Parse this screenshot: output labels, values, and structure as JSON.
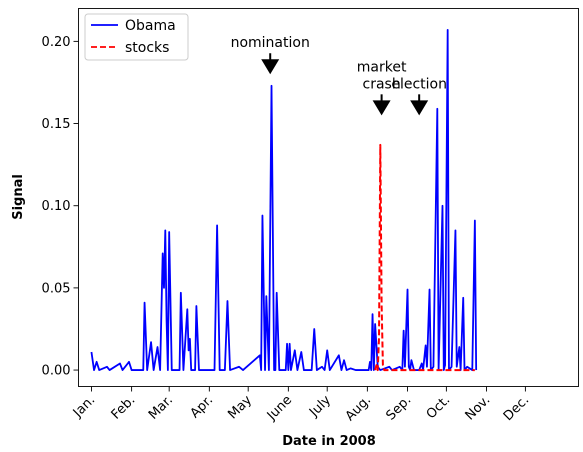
{
  "chart_data": {
    "type": "line",
    "title": "",
    "xlabel": "Date in 2008",
    "ylabel": "Signal",
    "x_tick_labels": [
      "Jan.",
      "Feb.",
      "Mar.",
      "Apr.",
      "May",
      "June",
      "July",
      "Aug.",
      "Sep.",
      "Oct.",
      "Nov.",
      "Dec."
    ],
    "y_tick_labels": [
      "0.00",
      "0.05",
      "0.10",
      "0.15",
      "0.20"
    ],
    "y_ticks": [
      0.0,
      0.05,
      0.1,
      0.15,
      0.2
    ],
    "xlim": [
      -10,
      376
    ],
    "ylim": [
      -0.01,
      0.22
    ],
    "grid": false,
    "legend_placement": "top-left",
    "colors": {
      "obama": "#0000ff",
      "stocks": "#ff0000"
    },
    "series": [
      {
        "name": "Obama",
        "style": "solid",
        "points": [
          [
            0,
            0.011
          ],
          [
            2,
            0.0
          ],
          [
            4,
            0.005
          ],
          [
            6,
            0.0
          ],
          [
            12,
            0.002
          ],
          [
            14,
            0.0
          ],
          [
            22,
            0.004
          ],
          [
            24,
            0.0
          ],
          [
            29,
            0.005
          ],
          [
            31,
            0.0
          ],
          [
            40,
            0.0
          ],
          [
            41,
            0.041
          ],
          [
            43,
            0.0
          ],
          [
            46,
            0.017
          ],
          [
            48,
            0.0
          ],
          [
            51,
            0.014
          ],
          [
            53,
            0.0
          ],
          [
            55,
            0.071
          ],
          [
            56,
            0.05
          ],
          [
            57,
            0.085
          ],
          [
            58,
            0.03
          ],
          [
            59,
            0.0
          ],
          [
            60,
            0.084
          ],
          [
            62,
            0.0
          ],
          [
            68,
            0.0
          ],
          [
            69,
            0.047
          ],
          [
            71,
            0.0
          ],
          [
            74,
            0.037
          ],
          [
            75,
            0.012
          ],
          [
            76,
            0.019
          ],
          [
            77,
            0.0
          ],
          [
            80,
            0.0
          ],
          [
            81,
            0.039
          ],
          [
            83,
            0.0
          ],
          [
            95,
            0.0
          ],
          [
            97,
            0.088
          ],
          [
            99,
            0.0
          ],
          [
            103,
            0.0
          ],
          [
            105,
            0.042
          ],
          [
            107,
            0.0
          ],
          [
            114,
            0.002
          ],
          [
            117,
            0.0
          ],
          [
            130,
            0.009
          ],
          [
            131,
            0.0
          ],
          [
            132,
            0.094
          ],
          [
            134,
            0.0
          ],
          [
            135,
            0.045
          ],
          [
            137,
            0.0
          ],
          [
            139,
            0.173
          ],
          [
            141,
            0.0
          ],
          [
            142,
            0.0
          ],
          [
            143,
            0.047
          ],
          [
            145,
            0.0
          ],
          [
            150,
            0.0
          ],
          [
            151,
            0.016
          ],
          [
            152,
            0.0
          ],
          [
            153,
            0.016
          ],
          [
            154,
            0.0
          ],
          [
            157,
            0.012
          ],
          [
            159,
            0.0
          ],
          [
            162,
            0.011
          ],
          [
            164,
            0.0
          ],
          [
            170,
            0.0
          ],
          [
            172,
            0.025
          ],
          [
            174,
            0.0
          ],
          [
            178,
            0.002
          ],
          [
            180,
            0.0
          ],
          [
            182,
            0.012
          ],
          [
            184,
            0.0
          ],
          [
            191,
            0.009
          ],
          [
            193,
            0.0
          ],
          [
            195,
            0.006
          ],
          [
            197,
            0.0
          ],
          [
            200,
            0.001
          ],
          [
            204,
            0.0
          ],
          [
            214,
            0.0
          ],
          [
            215,
            0.005
          ],
          [
            216,
            0.0
          ],
          [
            217,
            0.034
          ],
          [
            218,
            0.0
          ],
          [
            219,
            0.028
          ],
          [
            221,
            0.002
          ],
          [
            223,
            0.0
          ],
          [
            230,
            0.002
          ],
          [
            232,
            0.0
          ],
          [
            238,
            0.002
          ],
          [
            240,
            0.0
          ],
          [
            241,
            0.024
          ],
          [
            242,
            0.002
          ],
          [
            244,
            0.049
          ],
          [
            245,
            0.002
          ],
          [
            246,
            0.0
          ],
          [
            247,
            0.006
          ],
          [
            249,
            0.0
          ],
          [
            253,
            0.0
          ],
          [
            255,
            0.004
          ],
          [
            256,
            0.0
          ],
          [
            258,
            0.015
          ],
          [
            259,
            0.002
          ],
          [
            261,
            0.049
          ],
          [
            262,
            0.0
          ],
          [
            264,
            0.002
          ],
          [
            267,
            0.159
          ],
          [
            268,
            0.0
          ],
          [
            271,
            0.1
          ],
          [
            272,
            0.0
          ],
          [
            273,
            0.003
          ],
          [
            275,
            0.207
          ],
          [
            276,
            0.0
          ],
          [
            278,
            0.002
          ],
          [
            281,
            0.085
          ],
          [
            282,
            0.002
          ],
          [
            284,
            0.014
          ],
          [
            285,
            0.0
          ],
          [
            287,
            0.044
          ],
          [
            288,
            0.0
          ],
          [
            290,
            0.002
          ],
          [
            294,
            0.0
          ],
          [
            296,
            0.091
          ],
          [
            297,
            0.0
          ]
        ]
      },
      {
        "name": "stocks",
        "style": "dashed",
        "points": [
          [
            219,
            0.0
          ],
          [
            220,
            0.003
          ],
          [
            221,
            0.0
          ],
          [
            222,
            0.02
          ],
          [
            223,
            0.137
          ],
          [
            224,
            0.04
          ],
          [
            225,
            0.003
          ],
          [
            226,
            0.0
          ],
          [
            296,
            0.0
          ]
        ]
      }
    ],
    "annotations": [
      {
        "lines": [
          "nomination"
        ],
        "x": 138,
        "y": 0.18
      },
      {
        "lines": [
          "market",
          "crash"
        ],
        "x": 224,
        "y": 0.155
      },
      {
        "lines": [
          "election"
        ],
        "x": 253,
        "y": 0.155
      }
    ]
  }
}
